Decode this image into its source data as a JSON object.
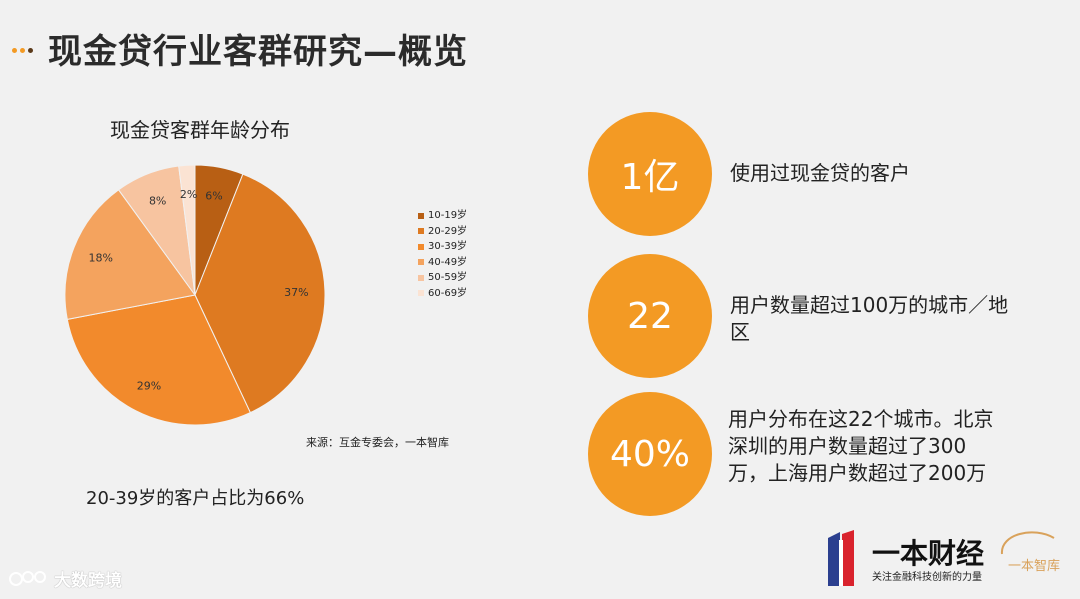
{
  "header": {
    "title": "现金贷行业客群研究—概览",
    "dot_colors": [
      "#f39a24",
      "#f39a24",
      "#5b3a1a"
    ]
  },
  "chart_data": {
    "type": "pie",
    "title": "现金贷客群年龄分布",
    "categories": [
      "10-19岁",
      "20-29岁",
      "30-39岁",
      "40-49岁",
      "50-59岁",
      "60-69岁"
    ],
    "values": [
      6,
      37,
      29,
      18,
      8,
      2
    ],
    "labels": [
      "6%",
      "37%",
      "29%",
      "18%",
      "8%",
      "2%"
    ],
    "colors": [
      "#b85f14",
      "#de7a21",
      "#f28a2c",
      "#f4a35e",
      "#f7c4a0",
      "#fbe3d3"
    ],
    "legend_position": "right"
  },
  "source_note": "来源：互金专委会，一本智库",
  "summary": "20-39岁的客户占比为66%",
  "stats": [
    {
      "value": "1亿",
      "desc": "使用过现金贷的客户"
    },
    {
      "value": "22",
      "desc": "用户数量超过100万的城市／地区"
    },
    {
      "value": "40%",
      "desc": "用户分布在这22个城市。北京深圳的用户数量超过了300万，上海用户数超过了200万"
    }
  ],
  "logo": {
    "name": "一本财经",
    "slogan": "关注金融科技创新的力量",
    "colors": {
      "blue": "#2b3f8f",
      "red": "#d9232d"
    }
  },
  "stamp": {
    "text": "一本智库"
  },
  "watermark": {
    "text": "大数跨境"
  }
}
